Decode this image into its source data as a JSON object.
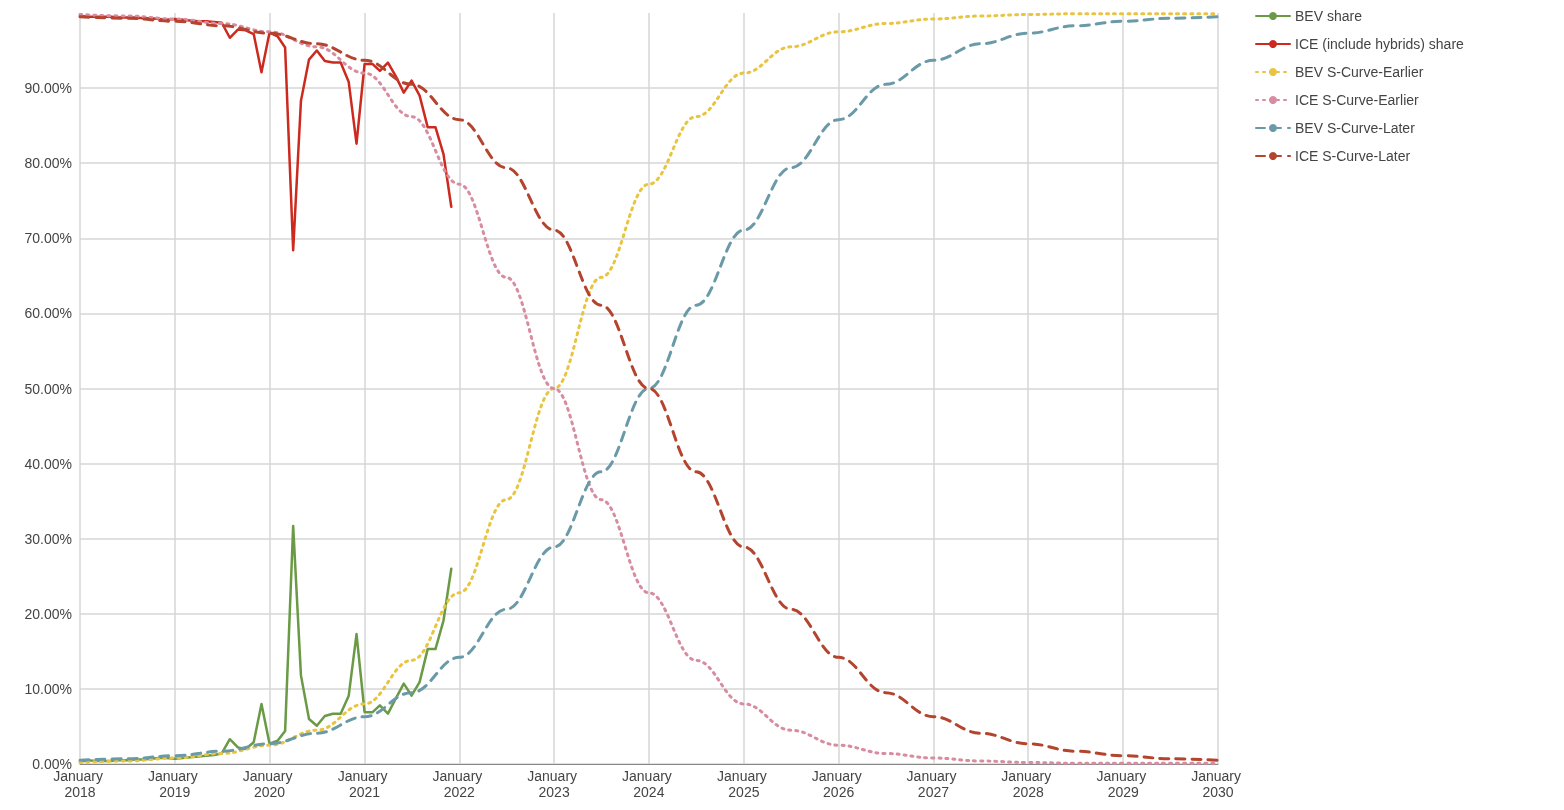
{
  "chart_data": {
    "type": "line",
    "xlim": [
      "2018-01",
      "2030-01"
    ],
    "xticks": [
      {
        "value": "2018-01",
        "label": "January 2018"
      },
      {
        "value": "2019-01",
        "label": "January 2019"
      },
      {
        "value": "2020-01",
        "label": "January 2020"
      },
      {
        "value": "2021-01",
        "label": "January 2021"
      },
      {
        "value": "2022-01",
        "label": "January 2022"
      },
      {
        "value": "2023-01",
        "label": "January 2023"
      },
      {
        "value": "2024-01",
        "label": "January 2024"
      },
      {
        "value": "2025-01",
        "label": "January 2025"
      },
      {
        "value": "2026-01",
        "label": "January 2026"
      },
      {
        "value": "2027-01",
        "label": "January 2027"
      },
      {
        "value": "2028-01",
        "label": "January 2028"
      },
      {
        "value": "2029-01",
        "label": "January 2029"
      },
      {
        "value": "2030-01",
        "label": "January 2030"
      }
    ],
    "ylim": [
      0,
      100
    ],
    "yticks": [
      {
        "value": 0,
        "label": "0.00%"
      },
      {
        "value": 10,
        "label": "10.00%"
      },
      {
        "value": 20,
        "label": "20.00%"
      },
      {
        "value": 30,
        "label": "30.00%"
      },
      {
        "value": 40,
        "label": "40.00%"
      },
      {
        "value": 50,
        "label": "50.00%"
      },
      {
        "value": 60,
        "label": "60.00%"
      },
      {
        "value": 70,
        "label": "70.00%"
      },
      {
        "value": 80,
        "label": "80.00%"
      },
      {
        "value": 90,
        "label": "90.00%"
      }
    ],
    "grid": true,
    "legend": "top right",
    "marker": "none",
    "series": [
      {
        "name": "BEV share",
        "color": "#6a9a45",
        "line_style": "solid",
        "x": [
          "2018-01",
          "2018-02",
          "2018-03",
          "2018-04",
          "2018-05",
          "2018-06",
          "2018-07",
          "2018-08",
          "2018-09",
          "2018-10",
          "2018-11",
          "2018-12",
          "2019-01",
          "2019-02",
          "2019-03",
          "2019-04",
          "2019-05",
          "2019-06",
          "2019-07",
          "2019-08",
          "2019-09",
          "2019-10",
          "2019-11",
          "2019-12",
          "2020-01",
          "2020-02",
          "2020-03",
          "2020-04",
          "2020-05",
          "2020-06",
          "2020-07",
          "2020-08",
          "2020-09",
          "2020-10",
          "2020-11",
          "2020-12",
          "2021-01",
          "2021-02",
          "2021-03",
          "2021-04",
          "2021-05",
          "2021-06",
          "2021-07",
          "2021-08",
          "2021-09",
          "2021-10",
          "2021-11",
          "2021-12"
        ],
        "values": [
          0.3,
          0.5,
          0.4,
          0.4,
          0.4,
          0.5,
          0.5,
          0.6,
          0.6,
          0.7,
          0.8,
          0.8,
          0.7,
          0.8,
          0.9,
          1.0,
          1.1,
          1.2,
          1.4,
          3.3,
          2.2,
          2.0,
          2.9,
          8.0,
          2.7,
          3.1,
          4.4,
          31.7,
          11.8,
          6.0,
          5.1,
          6.4,
          6.7,
          6.7,
          9.1,
          17.3,
          6.9,
          6.9,
          7.8,
          6.7,
          8.7,
          10.7,
          9.1,
          10.9,
          15.3,
          15.3,
          19.1,
          26.0
        ]
      },
      {
        "name": "ICE (include hybrids) share",
        "color": "#cc2a1f",
        "line_style": "solid",
        "x": [
          "2018-01",
          "2018-02",
          "2018-03",
          "2018-04",
          "2018-05",
          "2018-06",
          "2018-07",
          "2018-08",
          "2018-09",
          "2018-10",
          "2018-11",
          "2018-12",
          "2019-01",
          "2019-02",
          "2019-03",
          "2019-04",
          "2019-05",
          "2019-06",
          "2019-07",
          "2019-08",
          "2019-09",
          "2019-10",
          "2019-11",
          "2019-12",
          "2020-01",
          "2020-02",
          "2020-03",
          "2020-04",
          "2020-05",
          "2020-06",
          "2020-07",
          "2020-08",
          "2020-09",
          "2020-10",
          "2020-11",
          "2020-12",
          "2021-01",
          "2021-02",
          "2021-03",
          "2021-04",
          "2021-05",
          "2021-06",
          "2021-07",
          "2021-08",
          "2021-09",
          "2021-10",
          "2021-11",
          "2021-12"
        ],
        "values": [
          99.6,
          99.5,
          99.5,
          99.5,
          99.5,
          99.4,
          99.4,
          99.4,
          99.3,
          99.3,
          99.2,
          99.1,
          99.2,
          99.1,
          99.0,
          98.9,
          98.9,
          98.8,
          98.7,
          96.7,
          97.8,
          97.7,
          97.2,
          92.1,
          97.4,
          96.9,
          95.4,
          68.4,
          88.3,
          93.8,
          95.0,
          93.6,
          93.4,
          93.4,
          90.8,
          82.6,
          93.2,
          93.2,
          92.3,
          93.4,
          91.6,
          89.4,
          91.0,
          89.0,
          84.8,
          84.8,
          81.2,
          74.2
        ]
      },
      {
        "name": "BEV S-Curve-Earlier",
        "color": "#e8c440",
        "line_style": "dotted",
        "x": [
          "2018-01",
          "2018-07",
          "2019-01",
          "2019-07",
          "2020-01",
          "2020-07",
          "2021-01",
          "2021-07",
          "2022-01",
          "2022-07",
          "2023-01",
          "2023-07",
          "2024-01",
          "2024-07",
          "2025-01",
          "2025-07",
          "2026-01",
          "2026-07",
          "2027-01",
          "2027-07",
          "2028-01",
          "2028-07",
          "2029-01",
          "2029-07",
          "2030-01"
        ],
        "values": [
          0.2,
          0.4,
          0.8,
          1.4,
          2.5,
          4.5,
          8.0,
          13.8,
          22.8,
          35.2,
          50,
          64.8,
          77.2,
          86.2,
          92.0,
          95.5,
          97.5,
          98.6,
          99.2,
          99.6,
          99.8,
          99.9,
          99.9,
          99.9,
          99.9
        ]
      },
      {
        "name": "ICE S-Curve-Earlier",
        "color": "#d88ca0",
        "line_style": "dotted",
        "x": [
          "2018-01",
          "2018-07",
          "2019-01",
          "2019-07",
          "2020-01",
          "2020-07",
          "2021-01",
          "2021-07",
          "2022-01",
          "2022-07",
          "2023-01",
          "2023-07",
          "2024-01",
          "2024-07",
          "2025-01",
          "2025-07",
          "2026-01",
          "2026-07",
          "2027-01",
          "2027-07",
          "2028-01",
          "2028-07",
          "2029-01",
          "2029-07",
          "2030-01"
        ],
        "values": [
          99.8,
          99.6,
          99.2,
          98.6,
          97.5,
          95.5,
          92.0,
          86.2,
          77.2,
          64.8,
          50,
          35.2,
          22.8,
          13.8,
          8.0,
          4.5,
          2.5,
          1.4,
          0.8,
          0.4,
          0.2,
          0.1,
          0.1,
          0.1,
          0.1
        ]
      },
      {
        "name": "BEV S-Curve-Later",
        "color": "#6a9aa8",
        "line_style": "dashed",
        "x": [
          "2018-01",
          "2018-07",
          "2019-01",
          "2019-07",
          "2020-01",
          "2020-07",
          "2021-01",
          "2021-07",
          "2022-01",
          "2022-07",
          "2023-01",
          "2023-07",
          "2024-01",
          "2024-07",
          "2025-01",
          "2025-07",
          "2026-01",
          "2026-07",
          "2027-01",
          "2027-07",
          "2028-01",
          "2028-07",
          "2029-01",
          "2029-07",
          "2030-01"
        ],
        "values": [
          0.5,
          0.7,
          1.1,
          1.7,
          2.7,
          4.1,
          6.3,
          9.5,
          14.2,
          20.6,
          28.9,
          38.9,
          50,
          61.1,
          71.1,
          79.4,
          85.8,
          90.5,
          93.7,
          95.9,
          97.3,
          98.3,
          98.9,
          99.3,
          99.5
        ]
      },
      {
        "name": "ICE S-Curve-Later",
        "color": "#b5442e",
        "line_style": "dashed",
        "x": [
          "2018-01",
          "2018-07",
          "2019-01",
          "2019-07",
          "2020-01",
          "2020-07",
          "2021-01",
          "2021-07",
          "2022-01",
          "2022-07",
          "2023-01",
          "2023-07",
          "2024-01",
          "2024-07",
          "2025-01",
          "2025-07",
          "2026-01",
          "2026-07",
          "2027-01",
          "2027-07",
          "2028-01",
          "2028-07",
          "2029-01",
          "2029-07",
          "2030-01"
        ],
        "values": [
          99.5,
          99.3,
          98.9,
          98.3,
          97.3,
          95.9,
          93.7,
          90.5,
          85.8,
          79.4,
          71.1,
          61.1,
          50,
          38.9,
          28.9,
          20.6,
          14.2,
          9.5,
          6.3,
          4.1,
          2.7,
          1.7,
          1.1,
          0.7,
          0.5
        ]
      }
    ]
  }
}
